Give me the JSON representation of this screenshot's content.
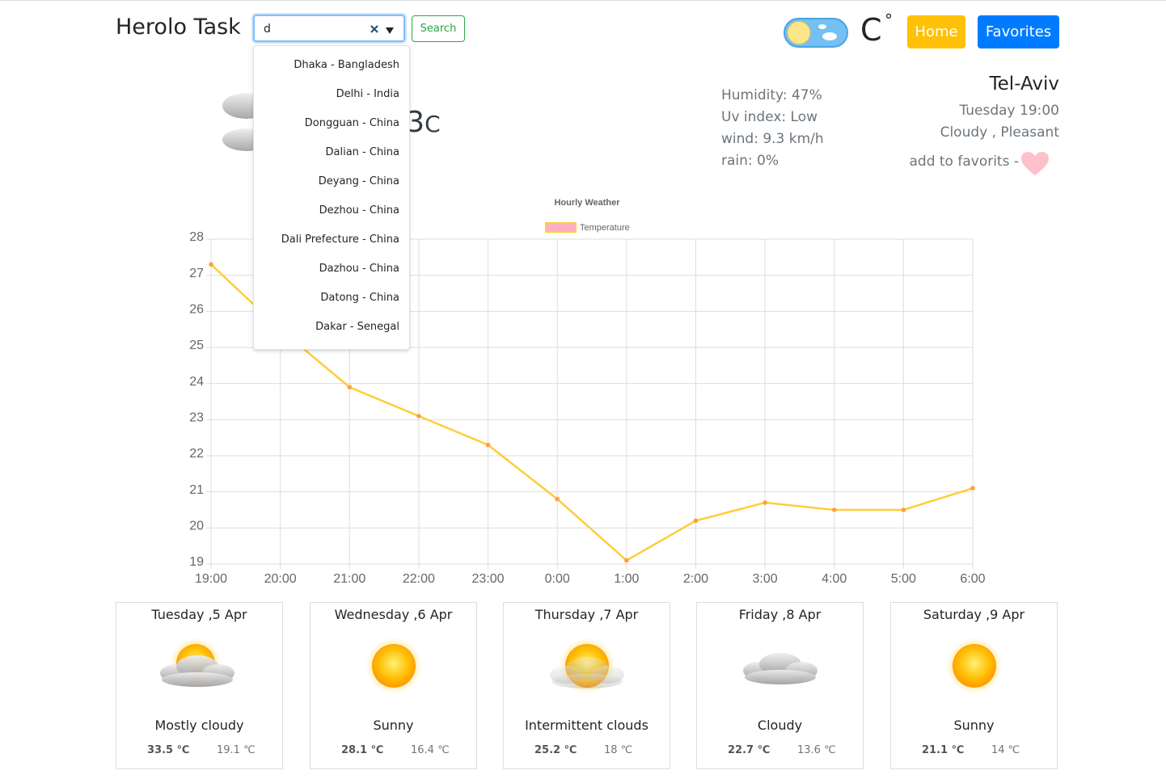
{
  "header": {
    "title": "Herolo Task",
    "search_value": "d",
    "search_button": "Search",
    "unit": "C",
    "unit_degree": "°",
    "home": "Home",
    "favorites": "Favorites"
  },
  "dropdown": [
    "Dhaka - Bangladesh",
    "Delhi - India",
    "Dongguan - China",
    "Dalian - China",
    "Deyang - China",
    "Dezhou - China",
    "Dali Prefecture - China",
    "Dazhou - China",
    "Datong - China",
    "Dakar - Senegal"
  ],
  "current": {
    "temperature": "27.3",
    "unit": "C",
    "humidity": "Humidity: 47%",
    "uv": "Uv index: Low",
    "wind": "wind: 9.3 km/h",
    "rain": "rain: 0%",
    "city": "Tel-Aviv",
    "time": "Tuesday 19:00",
    "condition": "Cloudy , Pleasant",
    "favorite": "add to favorits -"
  },
  "chart_data": {
    "type": "line",
    "title": "Hourly Weather",
    "categories": [
      "19:00",
      "20:00",
      "21:00",
      "22:00",
      "23:00",
      "0:00",
      "1:00",
      "2:00",
      "3:00",
      "4:00",
      "5:00",
      "6:00"
    ],
    "series": [
      {
        "name": "Temperature",
        "color": "#ffcd38",
        "point_color": "#ff9f40",
        "legend_fill": "#ffb1c1",
        "values": [
          27.3,
          25.5,
          23.9,
          23.1,
          22.3,
          20.8,
          19.1,
          20.2,
          20.7,
          20.5,
          20.5,
          21.1
        ]
      }
    ],
    "ylim": [
      19,
      28
    ],
    "yticks": [
      19,
      20,
      21,
      22,
      23,
      24,
      25,
      26,
      27,
      28
    ],
    "grid": true
  },
  "forecast": [
    {
      "day": "Tuesday ,5 Apr",
      "condition": "Mostly cloudy",
      "max": "33.5 ℃",
      "min": "19.1 ℃"
    },
    {
      "day": "Wednesday ,6 Apr",
      "condition": "Sunny",
      "max": "28.1 ℃",
      "min": "16.4 ℃"
    },
    {
      "day": "Thursday ,7 Apr",
      "condition": "Intermittent clouds",
      "max": "25.2 ℃",
      "min": "18 ℃"
    },
    {
      "day": "Friday ,8 Apr",
      "condition": "Cloudy",
      "max": "22.7 ℃",
      "min": "13.6 ℃"
    },
    {
      "day": "Saturday ,9 Apr",
      "condition": "Sunny",
      "max": "21.1 ℃",
      "min": "14 ℃"
    }
  ]
}
